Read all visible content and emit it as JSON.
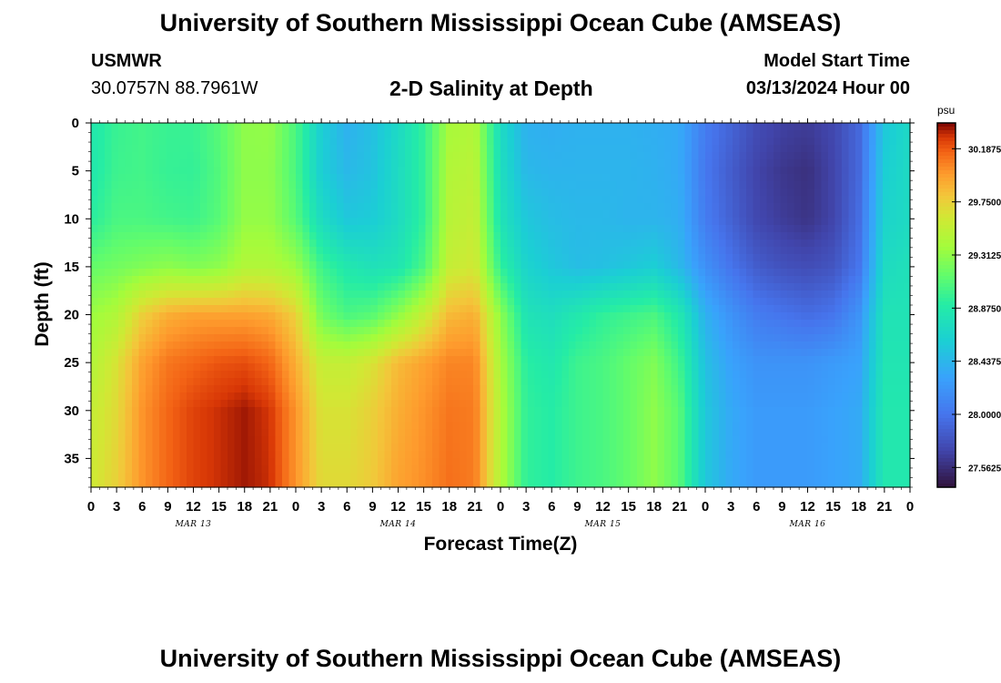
{
  "header": {
    "main_title": "University of Southern Mississippi Ocean Cube (AMSEAS)",
    "station_name": "USMWR",
    "station_coords": "30.0757N  88.7961W",
    "chart_title": "2-D Salinity at Depth",
    "model_start_label": "Model Start Time",
    "model_start_value": "03/13/2024 Hour 00"
  },
  "footer": {
    "title": "University of Southern Mississippi Ocean Cube (AMSEAS)"
  },
  "chart_data": {
    "type": "heatmap",
    "title": "2-D Salinity at Depth",
    "xlabel": "Forecast Time(Z)",
    "ylabel": "Depth (ft)",
    "xlim": [
      0,
      96
    ],
    "ylim": [
      0,
      38
    ],
    "y_inverted": true,
    "x_tick_labels": [
      "0",
      "3",
      "6",
      "9",
      "12",
      "15",
      "18",
      "21",
      "0",
      "3",
      "6",
      "9",
      "12",
      "15",
      "18",
      "21",
      "0",
      "3",
      "6",
      "9",
      "12",
      "15",
      "18",
      "21",
      "0",
      "3",
      "6",
      "9",
      "12",
      "15",
      "18",
      "21",
      "0"
    ],
    "y_tick_values": [
      0,
      5,
      10,
      15,
      20,
      25,
      30,
      35
    ],
    "day_labels": [
      {
        "label": "MAR 13",
        "hour": 12
      },
      {
        "label": "MAR 14",
        "hour": 36
      },
      {
        "label": "MAR 15",
        "hour": 60
      },
      {
        "label": "MAR 16",
        "hour": 84
      }
    ],
    "colorbar": {
      "unit": "psu",
      "min": 27.4,
      "max": 30.4,
      "tick_labels": [
        "30.1875",
        "29.7500",
        "29.3125",
        "28.8750",
        "28.4375",
        "28.0000",
        "27.5625"
      ],
      "tick_values": [
        30.1875,
        29.75,
        29.3125,
        28.875,
        28.4375,
        28.0,
        27.5625
      ]
    },
    "hours": [
      0,
      3,
      6,
      9,
      12,
      15,
      18,
      21,
      24,
      27,
      30,
      33,
      36,
      39,
      42,
      45,
      48,
      51,
      54,
      57,
      60,
      63,
      66,
      69,
      72,
      75,
      78,
      81,
      84,
      87,
      90,
      93,
      96
    ],
    "depths": [
      0,
      5,
      10,
      15,
      20,
      25,
      30,
      38
    ],
    "salinity": [
      [
        28.85,
        28.98,
        29.02,
        28.98,
        28.98,
        29.1,
        29.3,
        29.32,
        29.05,
        28.6,
        28.4,
        28.5,
        28.7,
        28.95,
        29.4,
        29.45,
        28.72,
        28.4,
        28.38,
        28.4,
        28.4,
        28.4,
        28.38,
        28.35,
        28.05,
        27.9,
        27.75,
        27.68,
        27.65,
        27.72,
        27.92,
        28.55,
        28.7
      ],
      [
        28.85,
        29.0,
        29.02,
        28.97,
        28.96,
        29.08,
        29.3,
        29.3,
        29.05,
        28.6,
        28.45,
        28.52,
        28.72,
        28.95,
        29.45,
        29.5,
        28.75,
        28.45,
        28.42,
        28.42,
        28.42,
        28.42,
        28.4,
        28.35,
        28.02,
        27.85,
        27.7,
        27.62,
        27.58,
        27.7,
        27.92,
        28.6,
        28.72
      ],
      [
        28.92,
        29.05,
        29.05,
        29.02,
        29.0,
        29.1,
        29.32,
        29.32,
        29.1,
        28.72,
        28.55,
        28.58,
        28.72,
        28.95,
        29.48,
        29.55,
        28.8,
        28.55,
        28.48,
        28.45,
        28.45,
        28.42,
        28.42,
        28.38,
        28.05,
        27.88,
        27.72,
        27.65,
        27.6,
        27.7,
        27.95,
        28.65,
        28.72
      ],
      [
        29.15,
        29.2,
        29.25,
        29.3,
        29.25,
        29.3,
        29.45,
        29.45,
        29.35,
        29.0,
        28.85,
        28.78,
        28.82,
        29.05,
        29.55,
        29.62,
        28.95,
        28.65,
        28.55,
        28.48,
        28.5,
        28.55,
        28.6,
        28.45,
        28.18,
        28.0,
        27.85,
        27.78,
        27.75,
        27.8,
        28.0,
        28.72,
        28.78
      ],
      [
        29.35,
        29.45,
        29.75,
        29.9,
        29.95,
        29.95,
        29.95,
        29.92,
        29.75,
        29.2,
        29.05,
        29.1,
        29.3,
        29.55,
        29.85,
        29.9,
        29.3,
        28.8,
        28.75,
        28.85,
        28.95,
        29.0,
        29.05,
        28.85,
        28.4,
        28.2,
        28.05,
        28.0,
        27.95,
        28.0,
        28.2,
        28.8,
        28.8
      ],
      [
        29.45,
        29.65,
        29.95,
        30.1,
        30.15,
        30.2,
        30.22,
        30.15,
        29.9,
        29.55,
        29.55,
        29.65,
        29.85,
        29.95,
        30.05,
        30.05,
        29.4,
        28.92,
        28.85,
        29.0,
        29.05,
        29.15,
        29.25,
        29.0,
        28.5,
        28.3,
        28.2,
        28.2,
        28.2,
        28.25,
        28.3,
        28.82,
        28.82
      ],
      [
        29.55,
        29.7,
        30.0,
        30.15,
        30.25,
        30.3,
        30.35,
        30.28,
        30.0,
        29.65,
        29.65,
        29.75,
        29.9,
        30.0,
        30.1,
        30.08,
        29.45,
        28.95,
        28.9,
        29.0,
        29.05,
        29.15,
        29.3,
        29.1,
        28.55,
        28.35,
        28.25,
        28.25,
        28.25,
        28.3,
        28.35,
        28.85,
        28.85
      ],
      [
        29.6,
        29.75,
        30.0,
        30.15,
        30.25,
        30.3,
        30.35,
        30.3,
        30.0,
        29.7,
        29.7,
        29.78,
        29.95,
        30.02,
        30.12,
        30.08,
        29.45,
        28.95,
        28.9,
        29.0,
        29.05,
        29.15,
        29.3,
        29.1,
        28.55,
        28.35,
        28.25,
        28.25,
        28.25,
        28.3,
        28.35,
        28.85,
        28.85
      ]
    ]
  }
}
